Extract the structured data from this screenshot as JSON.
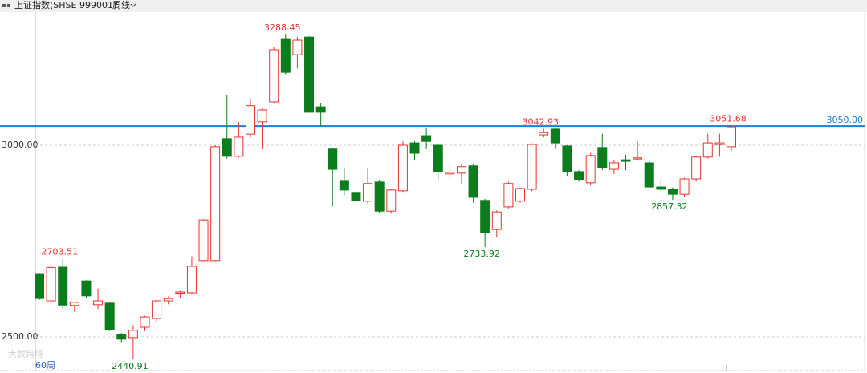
{
  "chart_data": {
    "type": "candlestick",
    "title": "上证指数(SHSE 999001)",
    "period": "周线",
    "indicator_label": "60周",
    "watermark": "大数跨境",
    "up_color": "#e8322e",
    "down_color": "#0b7d1c",
    "grid": true,
    "ylim": [
      2412,
      3341
    ],
    "yticks": [
      {
        "value": 2500,
        "label": "2500.00"
      },
      {
        "value": 3000,
        "label": "3000.00"
      }
    ],
    "hline": {
      "value": 3050,
      "label": "3050.00",
      "color": "#1a7fd4"
    },
    "series": [
      {
        "open": [
          2665,
          2594,
          2682,
          2582,
          2646,
          2584,
          2588,
          2506,
          2498,
          2525,
          2548,
          2594,
          2614,
          2615,
          2699,
          2699,
          3017,
          2971,
          3029,
          3061,
          3113,
          3278,
          3236,
          3282,
          3100,
          2990,
          2906,
          2877,
          2854,
          2904,
          2828,
          2881,
          3006,
          3025,
          3000,
          2925,
          2927,
          2946,
          2856,
          2780,
          2839,
          2854,
          2885,
          3027,
          3042,
          2998,
          2931,
          2902,
          2994,
          2937,
          2962,
          2964,
          2954,
          2891,
          2885,
          2872,
          2912,
          2969,
          3002,
          2996
        ],
        "high": [
          2667,
          2690,
          2703.51,
          2592,
          2648,
          2626,
          2590,
          2510,
          2530,
          2555,
          2596,
          2605,
          2620,
          2710,
          2807,
          3000,
          3130,
          3060,
          3120,
          3095,
          3255,
          3288.45,
          3282,
          3284,
          3110,
          2992,
          2940,
          2880,
          2940,
          2910,
          2885,
          3010,
          3010,
          3045,
          3002,
          2945,
          2950,
          2950,
          2860,
          2830,
          2905,
          2890,
          3005,
          3042.93,
          3045,
          3000,
          2935,
          2980,
          3030,
          2960,
          2975,
          3010,
          2960,
          2912,
          2890,
          2915,
          2972,
          3030,
          3030,
          3051.68
        ],
        "low": [
          2596,
          2588,
          2573,
          2565,
          2600,
          2573,
          2515,
          2486,
          2440.91,
          2515,
          2540,
          2585,
          2600,
          2610,
          2697,
          2697,
          2965,
          2968,
          3020,
          2990,
          3110,
          3185,
          3200,
          3085,
          3050,
          2840,
          2870,
          2840,
          2848,
          2823,
          2822,
          2878,
          2960,
          2990,
          2910,
          2915,
          2900,
          2850,
          2733.92,
          2760,
          2835,
          2850,
          2880,
          3020,
          2990,
          2920,
          2905,
          2895,
          2935,
          2925,
          2935,
          2960,
          2888,
          2880,
          2857.32,
          2865,
          2905,
          2965,
          2970,
          2985
        ],
        "close": [
          2600,
          2681,
          2583,
          2590,
          2607,
          2594,
          2519,
          2494,
          2517,
          2552,
          2594,
          2600,
          2617,
          2684,
          2805,
          2996,
          2971,
          3021,
          3103,
          3092,
          3249,
          3190,
          3274,
          3086,
          3086,
          2937,
          2883,
          2856,
          2900,
          2828,
          2883,
          3000,
          2979,
          3010,
          2931,
          2929,
          2944,
          2864,
          2772,
          2826,
          2900,
          2887,
          3002,
          3033,
          3006,
          2931,
          2910,
          2973,
          2941,
          2954,
          2958,
          2967,
          2891,
          2885,
          2872,
          2912,
          2969,
          3006,
          3006,
          3048
        ]
      }
    ]
  }
}
